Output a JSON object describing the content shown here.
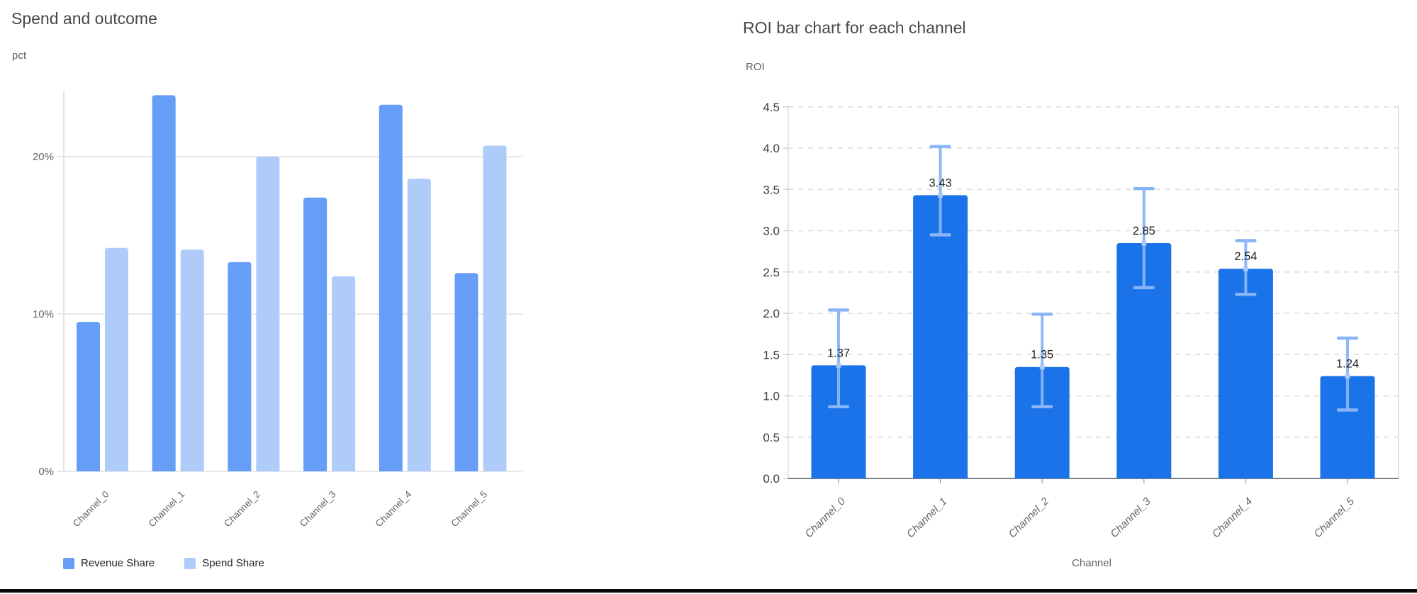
{
  "accent_colors": {
    "revenue_blue": "#669df6",
    "spend_blue": "#aecbfa",
    "roi_bar_blue": "#1a73e8",
    "error_bar_blue": "#8ab4f8",
    "grid_gray": "#dadce0",
    "axis_text_gray": "#5f6368",
    "value_label_dark": "#1f1f1f"
  },
  "chart_data": [
    {
      "type": "bar",
      "title": "Spend and outcome",
      "ylabel": "pct",
      "xlabel": "",
      "categories": [
        "Channel_0",
        "Channel_1",
        "Channel_2",
        "Channel_3",
        "Channel_4",
        "Channel_5"
      ],
      "series": [
        {
          "name": "Revenue Share",
          "color": "#669df6",
          "values": [
            9.5,
            23.9,
            13.3,
            17.4,
            23.3,
            12.6
          ]
        },
        {
          "name": "Spend Share",
          "color": "#aecbfa",
          "values": [
            14.2,
            14.1,
            20.0,
            12.4,
            18.6,
            20.7
          ]
        }
      ],
      "y_tick_values": [
        0,
        10,
        20
      ],
      "y_tick_labels": [
        "0%",
        "10%",
        "20%"
      ],
      "ylim": [
        0,
        24.2
      ],
      "grid": "solid",
      "legend_position": "bottom"
    },
    {
      "type": "bar",
      "title": "ROI bar chart for each channel",
      "ylabel": "ROI",
      "xlabel": "Channel",
      "categories": [
        "Channel_0",
        "Channel_1",
        "Channel_2",
        "Channel_3",
        "Channel_4",
        "Channel_5"
      ],
      "values": [
        1.37,
        3.43,
        1.35,
        2.85,
        2.54,
        1.24
      ],
      "bar_labels": [
        "1.37",
        "3.43",
        "1.35",
        "2.85",
        "2.54",
        "1.24"
      ],
      "error_low": [
        0.87,
        2.95,
        0.87,
        2.31,
        2.23,
        0.83
      ],
      "error_high": [
        2.04,
        4.02,
        1.99,
        3.51,
        2.88,
        1.7
      ],
      "bar_color": "#1a73e8",
      "error_color": "#8ab4f8",
      "y_tick_values": [
        0.0,
        0.5,
        1.0,
        1.5,
        2.0,
        2.5,
        3.0,
        3.5,
        4.0,
        4.5
      ],
      "y_tick_labels": [
        "0.0",
        "0.5",
        "1.0",
        "1.5",
        "2.0",
        "2.5",
        "3.0",
        "3.5",
        "4.0",
        "4.5"
      ],
      "ylim": [
        0,
        4.5
      ],
      "grid": "dashed",
      "legend_position": "none"
    }
  ]
}
